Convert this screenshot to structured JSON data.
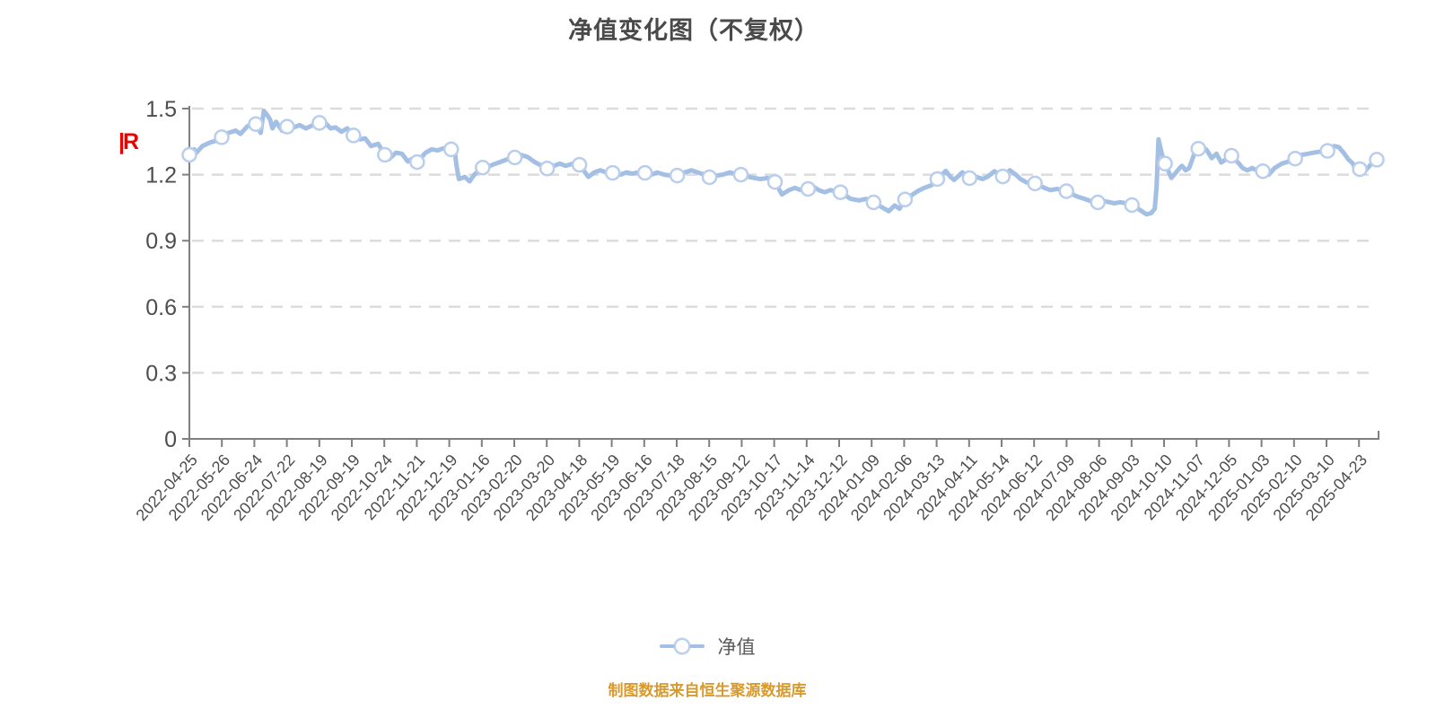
{
  "title": "净值变化图（不复权）",
  "watermark": "|R",
  "source_note": "制图数据来自恒生聚源数据库",
  "legend": {
    "label": "净值"
  },
  "colors": {
    "line": "#a4bfe4",
    "marker_fill": "#ffffff",
    "marker_stroke": "#b9cdec",
    "grid": "#dcdcdc",
    "axis": "#7f7f7f",
    "tick_label": "#4d4d4d",
    "title": "#4a4a4a",
    "source": "#d89a2e",
    "watermark": "#ee0000",
    "legend_text": "#595959"
  },
  "chart_data": {
    "type": "line",
    "title": "净值变化图（不复权）",
    "series_name": "净值",
    "xlabel": "",
    "ylabel": "",
    "ylim": [
      0,
      1.5
    ],
    "y_ticks": [
      0,
      0.3,
      0.6,
      0.9,
      1.2,
      1.5
    ],
    "grid": "horizontal-dashed",
    "legend_position": "bottom-center",
    "x_tick_labels": [
      "2022-04-25",
      "2022-05-26",
      "2022-06-24",
      "2022-07-22",
      "2022-08-19",
      "2022-09-19",
      "2022-10-24",
      "2022-11-21",
      "2022-12-19",
      "2023-01-16",
      "2023-02-20",
      "2023-03-20",
      "2023-04-18",
      "2023-05-19",
      "2023-06-16",
      "2023-07-18",
      "2023-08-15",
      "2023-09-12",
      "2023-10-17",
      "2023-11-14",
      "2023-12-12",
      "2024-01-09",
      "2024-02-06",
      "2024-03-13",
      "2024-04-11",
      "2024-05-14",
      "2024-06-12",
      "2024-07-09",
      "2024-08-06",
      "2024-09-03",
      "2024-10-10",
      "2024-11-07",
      "2024-12-05",
      "2025-01-03",
      "2025-02-10",
      "2025-03-10",
      "2025-04-23"
    ],
    "markers": [
      {
        "date": "2022-04-25",
        "value": 1.29
      },
      {
        "date": "2022-05-26",
        "value": 1.37
      },
      {
        "date": "2022-06-24",
        "value": 1.43
      },
      {
        "date": "2022-07-22",
        "value": 1.418
      },
      {
        "date": "2022-08-19",
        "value": 1.435
      },
      {
        "date": "2022-09-19",
        "value": 1.378
      },
      {
        "date": "2022-10-24",
        "value": 1.29
      },
      {
        "date": "2022-11-21",
        "value": 1.257
      },
      {
        "date": "2022-12-19",
        "value": 1.315
      },
      {
        "date": "2023-01-16",
        "value": 1.232
      },
      {
        "date": "2023-02-20",
        "value": 1.278
      },
      {
        "date": "2023-03-20",
        "value": 1.228
      },
      {
        "date": "2023-04-18",
        "value": 1.245
      },
      {
        "date": "2023-05-19",
        "value": 1.208
      },
      {
        "date": "2023-06-16",
        "value": 1.208
      },
      {
        "date": "2023-07-18",
        "value": 1.196
      },
      {
        "date": "2023-08-15",
        "value": 1.188
      },
      {
        "date": "2023-09-12",
        "value": 1.2
      },
      {
        "date": "2023-10-17",
        "value": 1.167
      },
      {
        "date": "2023-11-14",
        "value": 1.135
      },
      {
        "date": "2023-12-12",
        "value": 1.12
      },
      {
        "date": "2024-01-09",
        "value": 1.074
      },
      {
        "date": "2024-02-06",
        "value": 1.087
      },
      {
        "date": "2024-03-13",
        "value": 1.18
      },
      {
        "date": "2024-04-11",
        "value": 1.184
      },
      {
        "date": "2024-05-14",
        "value": 1.192
      },
      {
        "date": "2024-06-12",
        "value": 1.16
      },
      {
        "date": "2024-07-09",
        "value": 1.125
      },
      {
        "date": "2024-08-06",
        "value": 1.074
      },
      {
        "date": "2024-09-03",
        "value": 1.062
      },
      {
        "date": "2024-10-10",
        "value": 1.25
      },
      {
        "date": "2024-11-07",
        "value": 1.318
      },
      {
        "date": "2024-12-05",
        "value": 1.286
      },
      {
        "date": "2025-01-03",
        "value": 1.216
      },
      {
        "date": "2025-02-10",
        "value": 1.273
      },
      {
        "date": "2025-03-10",
        "value": 1.308
      },
      {
        "date": "2025-04-23",
        "value": 1.225
      },
      {
        "date": null,
        "value": 1.268
      }
    ],
    "line_points": [
      [
        0,
        1.29,
        1
      ],
      [
        0.004,
        1.315
      ],
      [
        0.006,
        1.3
      ],
      [
        0.011,
        1.33
      ],
      [
        0.017,
        1.345
      ],
      [
        0.023,
        1.355
      ],
      [
        0.0272,
        1.37,
        1
      ],
      [
        0.033,
        1.39
      ],
      [
        0.039,
        1.4
      ],
      [
        0.043,
        1.385
      ],
      [
        0.049,
        1.42
      ],
      [
        0.0559,
        1.43,
        1
      ],
      [
        0.06,
        1.39
      ],
      [
        0.0627,
        1.49
      ],
      [
        0.066,
        1.468
      ],
      [
        0.068,
        1.45
      ],
      [
        0.07,
        1.41
      ],
      [
        0.073,
        1.44
      ],
      [
        0.078,
        1.4
      ],
      [
        0.0823,
        1.418,
        1
      ],
      [
        0.088,
        1.415
      ],
      [
        0.093,
        1.425
      ],
      [
        0.098,
        1.41
      ],
      [
        0.104,
        1.425
      ],
      [
        0.1095,
        1.435,
        1
      ],
      [
        0.113,
        1.443
      ],
      [
        0.119,
        1.41
      ],
      [
        0.123,
        1.415
      ],
      [
        0.128,
        1.395
      ],
      [
        0.133,
        1.41
      ],
      [
        0.1382,
        1.378,
        1
      ],
      [
        0.144,
        1.36
      ],
      [
        0.148,
        1.365
      ],
      [
        0.153,
        1.33
      ],
      [
        0.159,
        1.34
      ],
      [
        0.1646,
        1.29,
        1
      ],
      [
        0.168,
        1.27
      ],
      [
        0.174,
        1.3
      ],
      [
        0.179,
        1.295
      ],
      [
        0.184,
        1.26
      ],
      [
        0.187,
        1.27
      ],
      [
        0.1918,
        1.257,
        1
      ],
      [
        0.199,
        1.3
      ],
      [
        0.204,
        1.315
      ],
      [
        0.209,
        1.31
      ],
      [
        0.214,
        1.32
      ],
      [
        0.2205,
        1.315,
        1
      ],
      [
        0.223,
        1.33
      ],
      [
        0.225,
        1.24
      ],
      [
        0.227,
        1.18
      ],
      [
        0.232,
        1.19
      ],
      [
        0.236,
        1.17
      ],
      [
        0.24,
        1.2
      ],
      [
        0.244,
        1.22
      ],
      [
        0.247,
        1.232,
        1
      ],
      [
        0.253,
        1.24
      ],
      [
        0.258,
        1.25
      ],
      [
        0.263,
        1.26
      ],
      [
        0.268,
        1.27
      ],
      [
        0.2741,
        1.278,
        1
      ],
      [
        0.279,
        1.29
      ],
      [
        0.285,
        1.28
      ],
      [
        0.29,
        1.26
      ],
      [
        0.295,
        1.245
      ],
      [
        0.3013,
        1.228,
        1
      ],
      [
        0.307,
        1.24
      ],
      [
        0.312,
        1.25
      ],
      [
        0.317,
        1.24
      ],
      [
        0.323,
        1.25
      ],
      [
        0.3285,
        1.245,
        1
      ],
      [
        0.332,
        1.22
      ],
      [
        0.336,
        1.19
      ],
      [
        0.341,
        1.21
      ],
      [
        0.346,
        1.22
      ],
      [
        0.351,
        1.21
      ],
      [
        0.3565,
        1.208,
        1
      ],
      [
        0.363,
        1.2
      ],
      [
        0.368,
        1.21
      ],
      [
        0.373,
        1.205
      ],
      [
        0.378,
        1.21
      ],
      [
        0.3837,
        1.208,
        1
      ],
      [
        0.389,
        1.2
      ],
      [
        0.394,
        1.21
      ],
      [
        0.4,
        1.2
      ],
      [
        0.406,
        1.195
      ],
      [
        0.4109,
        1.196,
        1
      ],
      [
        0.417,
        1.21
      ],
      [
        0.423,
        1.22
      ],
      [
        0.428,
        1.21
      ],
      [
        0.434,
        1.2
      ],
      [
        0.438,
        1.188,
        1
      ],
      [
        0.443,
        1.195
      ],
      [
        0.449,
        1.2
      ],
      [
        0.455,
        1.21
      ],
      [
        0.459,
        1.205
      ],
      [
        0.4645,
        1.2,
        1
      ],
      [
        0.471,
        1.19
      ],
      [
        0.476,
        1.185
      ],
      [
        0.481,
        1.18
      ],
      [
        0.487,
        1.185
      ],
      [
        0.4932,
        1.167,
        1
      ],
      [
        0.499,
        1.11
      ],
      [
        0.505,
        1.13
      ],
      [
        0.51,
        1.14
      ],
      [
        0.515,
        1.13
      ],
      [
        0.5211,
        1.135,
        1
      ],
      [
        0.525,
        1.147
      ],
      [
        0.53,
        1.13
      ],
      [
        0.535,
        1.12
      ],
      [
        0.54,
        1.13
      ],
      [
        0.544,
        1.125
      ],
      [
        0.5483,
        1.12,
        1
      ],
      [
        0.557,
        1.09
      ],
      [
        0.564,
        1.083
      ],
      [
        0.57,
        1.09
      ],
      [
        0.5762,
        1.074,
        1
      ],
      [
        0.584,
        1.05
      ],
      [
        0.589,
        1.034
      ],
      [
        0.594,
        1.06
      ],
      [
        0.598,
        1.045
      ],
      [
        0.6027,
        1.087,
        1
      ],
      [
        0.61,
        1.113
      ],
      [
        0.614,
        1.127
      ],
      [
        0.619,
        1.14
      ],
      [
        0.625,
        1.152
      ],
      [
        0.6299,
        1.18,
        1
      ],
      [
        0.637,
        1.217
      ],
      [
        0.641,
        1.19
      ],
      [
        0.644,
        1.176
      ],
      [
        0.651,
        1.21
      ],
      [
        0.6571,
        1.184,
        1
      ],
      [
        0.663,
        1.19
      ],
      [
        0.668,
        1.18
      ],
      [
        0.672,
        1.19
      ],
      [
        0.678,
        1.215
      ],
      [
        0.685,
        1.192,
        1
      ],
      [
        0.691,
        1.22
      ],
      [
        0.696,
        1.2
      ],
      [
        0.7,
        1.18
      ],
      [
        0.705,
        1.165
      ],
      [
        0.7122,
        1.16,
        1
      ],
      [
        0.72,
        1.14
      ],
      [
        0.725,
        1.13
      ],
      [
        0.731,
        1.135
      ],
      [
        0.7386,
        1.125,
        1
      ],
      [
        0.744,
        1.11
      ],
      [
        0.748,
        1.1
      ],
      [
        0.754,
        1.09
      ],
      [
        0.759,
        1.08
      ],
      [
        0.7651,
        1.074,
        1
      ],
      [
        0.77,
        1.08
      ],
      [
        0.775,
        1.075
      ],
      [
        0.779,
        1.07
      ],
      [
        0.784,
        1.075
      ],
      [
        0.789,
        1.07
      ],
      [
        0.7938,
        1.062,
        1
      ],
      [
        0.801,
        1.038
      ],
      [
        0.806,
        1.02
      ],
      [
        0.81,
        1.025
      ],
      [
        0.813,
        1.045
      ],
      [
        0.8145,
        1.14
      ],
      [
        0.8162,
        1.36
      ],
      [
        0.819,
        1.295
      ],
      [
        0.8217,
        1.25,
        1
      ],
      [
        0.825,
        1.21
      ],
      [
        0.827,
        1.185
      ],
      [
        0.831,
        1.21
      ],
      [
        0.834,
        1.23
      ],
      [
        0.836,
        1.24
      ],
      [
        0.839,
        1.22
      ],
      [
        0.842,
        1.23
      ],
      [
        0.846,
        1.29
      ],
      [
        0.8497,
        1.318,
        1
      ],
      [
        0.852,
        1.335
      ],
      [
        0.857,
        1.31
      ],
      [
        0.861,
        1.275
      ],
      [
        0.865,
        1.295
      ],
      [
        0.869,
        1.255
      ],
      [
        0.873,
        1.27
      ],
      [
        0.8776,
        1.286,
        1
      ],
      [
        0.884,
        1.25
      ],
      [
        0.887,
        1.23
      ],
      [
        0.891,
        1.22
      ],
      [
        0.895,
        1.23
      ],
      [
        0.899,
        1.22
      ],
      [
        0.9041,
        1.216,
        1
      ],
      [
        0.909,
        1.2
      ],
      [
        0.914,
        1.23
      ],
      [
        0.92,
        1.25
      ],
      [
        0.926,
        1.26
      ],
      [
        0.9313,
        1.273,
        1
      ],
      [
        0.937,
        1.29
      ],
      [
        0.942,
        1.295
      ],
      [
        0.947,
        1.3
      ],
      [
        0.953,
        1.305
      ],
      [
        0.9585,
        1.308,
        1
      ],
      [
        0.964,
        1.33
      ],
      [
        0.968,
        1.325
      ],
      [
        0.972,
        1.3
      ],
      [
        0.976,
        1.27
      ],
      [
        0.98,
        1.25
      ],
      [
        0.982,
        1.22
      ],
      [
        0.9857,
        1.225,
        1
      ],
      [
        0.989,
        1.21
      ],
      [
        0.994,
        1.24
      ],
      [
        0.997,
        1.26
      ],
      [
        1,
        1.268,
        1
      ]
    ]
  }
}
